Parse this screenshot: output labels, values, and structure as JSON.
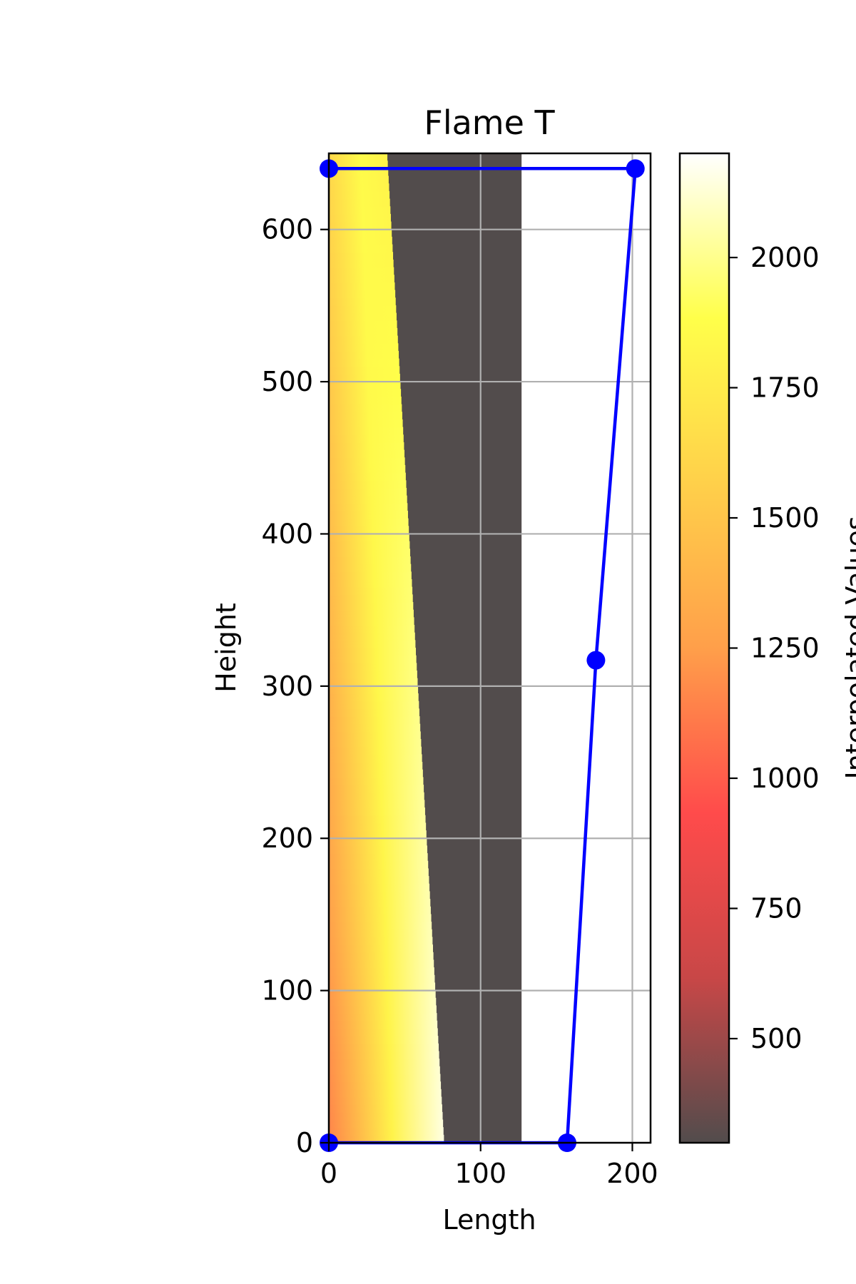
{
  "chart_data": {
    "type": "heatmap",
    "title": "Flame T",
    "xlabel": "Length",
    "ylabel": "Height",
    "xlim": [
      0,
      212
    ],
    "ylim": [
      0,
      650
    ],
    "grid": true,
    "x_ticks": [
      0,
      100,
      200
    ],
    "y_ticks": [
      0,
      100,
      200,
      300,
      400,
      500,
      600
    ],
    "colorbar": {
      "label": "Interpolated Values",
      "range": [
        300,
        2200
      ],
      "ticks": [
        500,
        750,
        1000,
        1250,
        1500,
        1750,
        2000
      ],
      "colormap": "hot",
      "alpha": 0.7
    },
    "heatmap": {
      "x_range": [
        0,
        127
      ],
      "y_range": [
        0,
        650
      ],
      "flame_front_x": [
        {
          "y": 0,
          "x": 76
        },
        {
          "y": 640,
          "x": 39
        }
      ],
      "flame_front_x_at_top": 39,
      "temperature_at_origin": 1150,
      "temperature_at_flame_front": 2150,
      "burnt_gas_temperature": 300,
      "colors": {
        "burnt": "#524c4c",
        "stops": [
          "#524c4c",
          "#c84747",
          "#ff4b4b",
          "#ff9f4a",
          "#ffd04a",
          "#ffff4a",
          "#ffffff"
        ]
      }
    },
    "series": [
      {
        "type": "line",
        "color": "#0000ff",
        "x": [
          0,
          157,
          176,
          202,
          0
        ],
        "y": [
          0,
          0,
          317,
          640,
          640
        ]
      }
    ]
  }
}
